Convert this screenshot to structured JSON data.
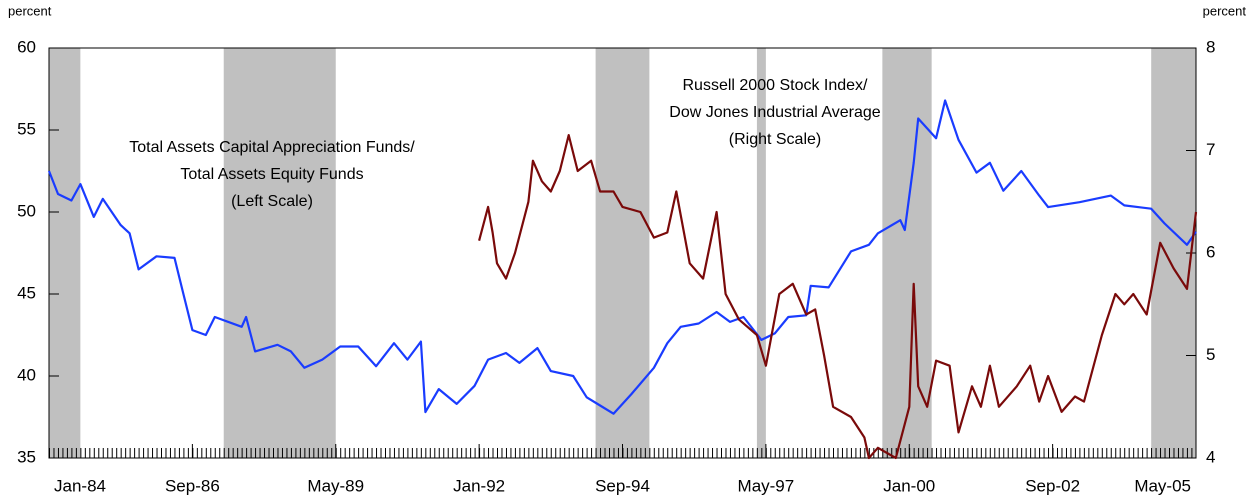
{
  "chart_data": {
    "type": "line",
    "y_label": "percent",
    "y2_label": "percent",
    "xlim": [
      "Jan-84",
      "May-05"
    ],
    "xticks": [
      "Jan-84",
      "Sep-86",
      "May-89",
      "Jan-92",
      "Sep-94",
      "May-97",
      "Jan-00",
      "Sep-02",
      "May-05"
    ],
    "ylim": [
      35,
      60
    ],
    "yticks": [
      35,
      40,
      45,
      50,
      55,
      60
    ],
    "y2lim": [
      4,
      8
    ],
    "y2ticks": [
      4,
      5,
      6,
      7,
      8
    ],
    "shaded_periods": [
      [
        "Jan-84",
        "Aug-84"
      ],
      [
        "Apr-87",
        "May-89"
      ],
      [
        "Mar-94",
        "Mar-95"
      ],
      [
        "Mar-97",
        "May-97"
      ],
      [
        "Jul-99",
        "Jun-00"
      ],
      [
        "Jul-04",
        "May-05"
      ]
    ],
    "shade_color": "#c0c0c0",
    "annotations": [
      {
        "lines": [
          "Total Assets Capital Appreciation Funds/",
          "Total Assets Equity Funds",
          "(Left Scale)"
        ],
        "color": "#1a3cff"
      },
      {
        "lines": [
          "Russell 2000 Stock Index/",
          "Dow Jones Industrial Average",
          "(Right Scale)"
        ],
        "color": "#7a0a0a"
      }
    ],
    "series": [
      {
        "name": "Total Assets Capital Appreciation Funds/Total Assets Equity Funds",
        "color": "#1a3cff",
        "axis": "y",
        "x": [
          "Jan-84",
          "Mar-84",
          "Jun-84",
          "Aug-84",
          "Nov-84",
          "Jan-85",
          "May-85",
          "Jul-85",
          "Sep-85",
          "Jan-86",
          "May-86",
          "Jul-86",
          "Sep-86",
          "Dec-86",
          "Feb-87",
          "Aug-87",
          "Sep-87",
          "Nov-87",
          "Apr-88",
          "Jul-88",
          "Oct-88",
          "Feb-89",
          "Jun-89",
          "Oct-89",
          "Feb-90",
          "Jun-90",
          "Sep-90",
          "Dec-90",
          "Jan-91",
          "Apr-91",
          "Aug-91",
          "Dec-91",
          "Mar-92",
          "Jul-92",
          "Oct-92",
          "Feb-93",
          "May-93",
          "Oct-93",
          "Jan-94",
          "Apr-94",
          "Jul-94",
          "Nov-94",
          "Apr-95",
          "Jul-95",
          "Oct-95",
          "Feb-96",
          "Jun-96",
          "Sep-96",
          "Dec-96",
          "Apr-97",
          "Jul-97",
          "Oct-97",
          "Feb-98",
          "Mar-98",
          "Jul-98",
          "Dec-98",
          "Apr-99",
          "Jun-99",
          "Nov-99",
          "Dec-99",
          "Feb-00",
          "Mar-00",
          "Jul-00",
          "Sep-00",
          "Dec-00",
          "Apr-01",
          "Jul-01",
          "Oct-01",
          "Feb-02",
          "Jun-02",
          "Aug-02",
          "Mar-03",
          "Oct-03",
          "Jan-04",
          "Jul-04",
          "Oct-04",
          "Mar-05",
          "May-05"
        ],
        "values": [
          52.5,
          51.1,
          50.7,
          51.7,
          49.7,
          50.8,
          49.2,
          48.7,
          46.5,
          47.3,
          47.2,
          45.0,
          42.8,
          42.5,
          43.6,
          43.0,
          43.6,
          41.5,
          41.9,
          41.5,
          40.5,
          41.0,
          41.8,
          41.8,
          40.6,
          42.0,
          41.0,
          42.1,
          37.8,
          39.2,
          38.3,
          39.4,
          41.0,
          41.4,
          40.8,
          41.7,
          40.3,
          40.0,
          38.7,
          38.2,
          37.7,
          38.9,
          40.5,
          42.0,
          43.0,
          43.2,
          43.9,
          43.3,
          43.6,
          42.2,
          42.6,
          43.6,
          43.7,
          45.5,
          45.4,
          47.6,
          48.0,
          48.7,
          49.5,
          48.9,
          53.0,
          55.7,
          54.5,
          56.8,
          54.4,
          52.4,
          53.0,
          51.3,
          52.5,
          51.0,
          50.3,
          50.6,
          51.0,
          50.4,
          50.2,
          49.3,
          48.0,
          48.8
        ]
      },
      {
        "name": "Russell 2000 Stock Index/Dow Jones Industrial Average",
        "color": "#7a0a0a",
        "axis": "y2",
        "x": [
          "Jan-92",
          "Mar-92",
          "Apr-92",
          "May-92",
          "Jul-92",
          "Sep-92",
          "Dec-92",
          "Jan-93",
          "Mar-93",
          "May-93",
          "Jul-93",
          "Sep-93",
          "Nov-93",
          "Feb-94",
          "Apr-94",
          "Jul-94",
          "Sep-94",
          "Jan-95",
          "Apr-95",
          "Jul-95",
          "Sep-95",
          "Dec-95",
          "Mar-96",
          "Jun-96",
          "Aug-96",
          "Nov-96",
          "Mar-97",
          "May-97",
          "Aug-97",
          "Nov-97",
          "Feb-98",
          "Apr-98",
          "Jun-98",
          "Aug-98",
          "Dec-98",
          "Mar-99",
          "Apr-99",
          "Jun-99",
          "Oct-99",
          "Jan-00",
          "Feb-00",
          "Mar-00",
          "May-00",
          "Jul-00",
          "Oct-00",
          "Dec-00",
          "Mar-01",
          "May-01",
          "Jul-01",
          "Sep-01",
          "Jan-02",
          "Apr-02",
          "Jun-02",
          "Aug-02",
          "Nov-02",
          "Feb-03",
          "Apr-03",
          "Aug-03",
          "Nov-03",
          "Jan-04",
          "Mar-04",
          "Jun-04",
          "Sep-04",
          "Dec-04",
          "Mar-05",
          "May-05"
        ],
        "values": [
          6.12,
          6.45,
          6.2,
          5.9,
          5.75,
          6.0,
          6.5,
          6.9,
          6.7,
          6.6,
          6.8,
          7.15,
          6.8,
          6.9,
          6.6,
          6.6,
          6.45,
          6.4,
          6.15,
          6.2,
          6.6,
          5.9,
          5.75,
          6.4,
          5.6,
          5.35,
          5.2,
          4.9,
          5.6,
          5.7,
          5.4,
          5.45,
          5.0,
          4.5,
          4.4,
          4.2,
          4.0,
          4.1,
          4.0,
          4.5,
          5.7,
          4.7,
          4.5,
          4.95,
          4.9,
          4.25,
          4.7,
          4.5,
          4.9,
          4.5,
          4.7,
          4.9,
          4.55,
          4.8,
          4.45,
          4.6,
          4.55,
          5.2,
          5.6,
          5.5,
          5.6,
          5.4,
          6.1,
          5.85,
          5.65,
          6.4
        ]
      }
    ]
  }
}
